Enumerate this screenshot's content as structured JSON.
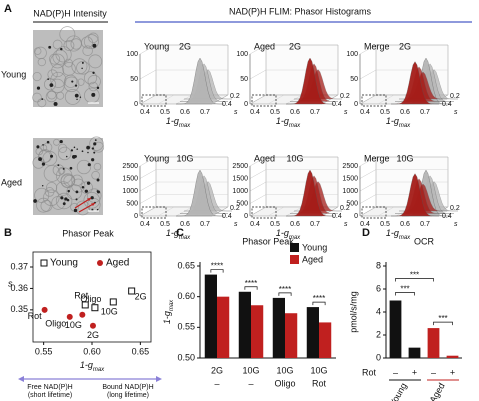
{
  "panel_labels": [
    "A",
    "B",
    "C",
    "D"
  ],
  "panel_a": {
    "intensity_title": "NAD(P)H Intensity",
    "flim_title": "NAD(P)H FLIM:  Phasor Histograms",
    "rows": [
      {
        "label": "Young",
        "label_color": "#111111",
        "titles": [
          "2G",
          "2G",
          "2G"
        ],
        "insets": [
          "Young",
          "Aged",
          "Merge"
        ],
        "yticks": [
          "0",
          "50",
          "100"
        ]
      },
      {
        "label": "Aged",
        "label_color": "#c0201f",
        "titles": [
          "10G",
          "10G",
          "10G"
        ],
        "insets": [
          "Young",
          "Aged",
          "Merge"
        ],
        "yticks": [
          "0",
          "500",
          "1000",
          "1500",
          "2500"
        ]
      }
    ],
    "inset_colors": [
      "#111111",
      "#c0201f",
      "#111111"
    ],
    "peak_colors": [
      "#b5b5b5",
      "#a51d19"
    ],
    "xticks": [
      "0.4",
      "0.5",
      "0.6",
      "0.7"
    ],
    "depth_ticks": [
      "0.2",
      "0.4"
    ],
    "depth_label": "s",
    "x_label": "1-g",
    "x_label_sub": "max"
  },
  "chart_data": [
    {
      "type": "scatter",
      "title": "Phasor Peak",
      "xlabel": "1-g",
      "xlabel_sub": "max",
      "ylabel": "s",
      "xlim": [
        0.539,
        0.661
      ],
      "ylim": [
        0.335,
        0.377
      ],
      "xticks": [
        {
          "value": 0.55,
          "label": "0.55"
        },
        {
          "value": 0.6,
          "label": "0.60"
        },
        {
          "value": 0.65,
          "label": "0.65"
        }
      ],
      "yticks": [
        {
          "value": 0.35,
          "label": "0.35"
        },
        {
          "value": 0.36,
          "label": "0.36"
        },
        {
          "value": 0.37,
          "label": "0.37"
        }
      ],
      "series": [
        {
          "name": "Young",
          "color": "#111111",
          "marker": "open-square",
          "x": [
            0.641,
            0.622,
            0.603,
            0.593
          ],
          "values": [
            0.3588,
            0.3537,
            0.351,
            0.3523
          ],
          "point_labels": [
            "2G",
            "10G",
            "Oligo",
            "Rot"
          ]
        },
        {
          "name": "Aged",
          "color": "#c0201f",
          "marker": "circle",
          "x": [
            0.601,
            0.59,
            0.577,
            0.551
          ],
          "values": [
            0.3426,
            0.3477,
            0.3467,
            0.35
          ],
          "point_labels": [
            "2G",
            "10G",
            "Oligo",
            "Rot"
          ]
        }
      ],
      "legend": "top",
      "annotations": {
        "left": "Free NAD(P)H",
        "left_sub": "(short lifetime)",
        "right": "Bound NAD(P)H",
        "right_sub": "(long lifetime)",
        "arrow_color": "#8a80d8"
      }
    },
    {
      "type": "bar",
      "title": "Phasor Peak",
      "ylabel": "1-g",
      "ylabel_sub": "max",
      "ylim": [
        0.5,
        0.65
      ],
      "yticks": [
        {
          "value": 0.5,
          "label": "0.50"
        },
        {
          "value": 0.55,
          "label": "0.55"
        },
        {
          "value": 0.6,
          "label": "0.60"
        },
        {
          "value": 0.65,
          "label": "0.65"
        }
      ],
      "categories": [
        "2G",
        "10G",
        "10G",
        "10G"
      ],
      "treatments": [
        "–",
        "–",
        "Oligo",
        "Rot"
      ],
      "series": [
        {
          "name": "Young",
          "color": "#111111",
          "values": [
            0.636,
            0.608,
            0.598,
            0.583
          ]
        },
        {
          "name": "Aged",
          "color": "#c0201f",
          "values": [
            0.6,
            0.586,
            0.573,
            0.558
          ]
        }
      ],
      "significance": [
        "****",
        "****",
        "****",
        "****"
      ],
      "significance_color": "#3050c0",
      "legend": "top-right"
    },
    {
      "type": "bar",
      "title": "OCR",
      "ylabel": "pmol/s/mg",
      "ylim": [
        0,
        8
      ],
      "yticks": [
        0,
        2,
        4,
        6,
        8
      ],
      "categories": [
        "–",
        "+",
        "–",
        "+"
      ],
      "category_axis_label": "Rot",
      "groups": [
        "Young",
        "Aged"
      ],
      "group_colors": [
        "#111111",
        "#c0201f"
      ],
      "values": [
        5.0,
        0.9,
        2.6,
        0.2
      ],
      "colors": [
        "#111111",
        "#111111",
        "#c0201f",
        "#c0201f"
      ],
      "significance": [
        "***",
        "***",
        "***"
      ],
      "significance_color": "#3050c0"
    }
  ]
}
